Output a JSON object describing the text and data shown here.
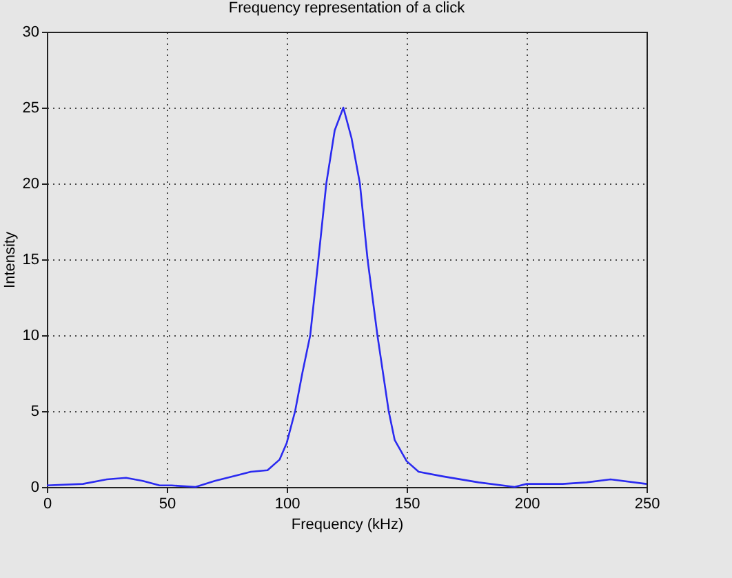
{
  "chart_data": {
    "type": "line",
    "title": "Frequency representation of a click",
    "xlabel": "Frequency (kHz)",
    "ylabel": "Intensity",
    "xlim": [
      0,
      250
    ],
    "ylim": [
      0,
      30
    ],
    "xticks": [
      0,
      50,
      100,
      150,
      200,
      250
    ],
    "yticks": [
      0,
      5,
      10,
      15,
      20,
      25,
      30
    ],
    "grid": true,
    "line_style": "solid",
    "series": [
      {
        "color": "#2a2af0",
        "x": [
          0,
          15,
          25,
          33,
          40,
          47,
          52,
          62,
          70,
          80,
          85,
          92,
          97,
          100,
          103.5,
          106.5,
          109.8,
          113.2,
          116.5,
          120,
          123.6,
          127,
          130.5,
          133.7,
          137.8,
          142.5,
          145,
          150,
          155,
          165,
          180,
          195,
          200,
          215,
          225,
          235,
          250
        ],
        "values": [
          0.1,
          0.2,
          0.5,
          0.6,
          0.4,
          0.1,
          0.1,
          0,
          0.4,
          0.8,
          1,
          1.1,
          1.8,
          2.9,
          5,
          7.5,
          10,
          15,
          20,
          23.5,
          25,
          23,
          20,
          15,
          10,
          5,
          3.1,
          1.7,
          1,
          0.7,
          0.3,
          0,
          0.2,
          0.2,
          0.3,
          0.5,
          0.2
        ]
      }
    ]
  }
}
